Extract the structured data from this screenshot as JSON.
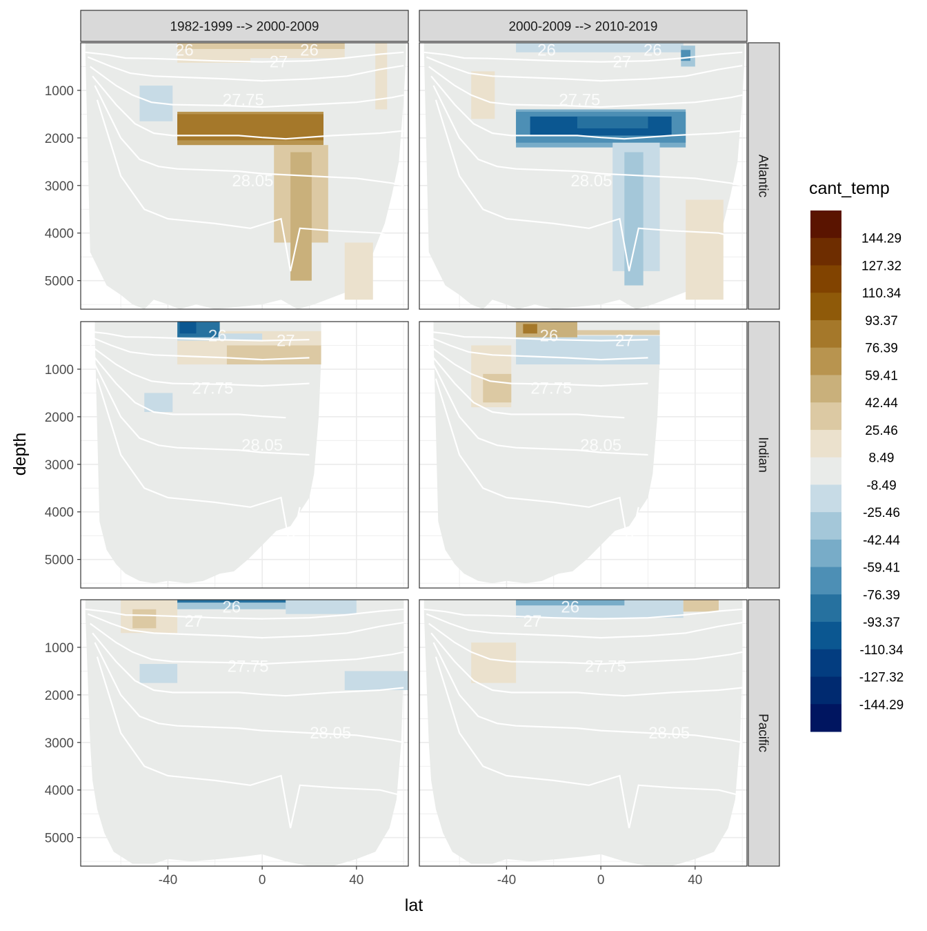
{
  "chart_data": {
    "type": "heatmap",
    "description_fields": {
      "xlabel": "lat",
      "ylabel": "depth",
      "legend_title": "cant_temp"
    },
    "x_ticks": [
      "-40",
      "0",
      "40"
    ],
    "x_tick_values": [
      -40,
      0,
      40
    ],
    "xlim": [
      -77,
      62
    ],
    "y_ticks": [
      "1000",
      "2000",
      "3000",
      "4000",
      "5000"
    ],
    "y_tick_values": [
      1000,
      2000,
      3000,
      4000,
      5000
    ],
    "ylim": [
      0,
      5600
    ],
    "columns": [
      "1982-1999 --> 2000-2009",
      "2000-2009 --> 2010-2019"
    ],
    "rows": [
      "Atlantic",
      "Indian",
      "Pacific"
    ],
    "legend_breaks": [
      "144.29",
      "127.32",
      "110.34",
      "93.37",
      "76.39",
      "59.41",
      "42.44",
      "25.46",
      "8.49",
      "-8.49",
      "-25.46",
      "-42.44",
      "-59.41",
      "-76.39",
      "-93.37",
      "-110.34",
      "-127.32",
      "-144.29"
    ],
    "legend_colors": [
      "#5a1400",
      "#6e2d00",
      "#814300",
      "#8f5a09",
      "#a5782a",
      "#b8944f",
      "#c9b07b",
      "#dcc9a3",
      "#ebe1cd",
      "#e9ebe9",
      "#c7dbe6",
      "#a4c7d9",
      "#78acc8",
      "#4d8fb5",
      "#26719f",
      "#0b5791",
      "#033d80",
      "#002a70",
      "#001560"
    ],
    "isopycnal_labels": [
      "26",
      "27",
      "27.75",
      "28.05"
    ],
    "panels": [
      {
        "row": "Atlantic",
        "col": 0,
        "labels": [
          {
            "t": "26",
            "x": -33,
            "z": 150
          },
          {
            "t": "26",
            "x": 20,
            "z": 150
          },
          {
            "t": "27",
            "x": 7,
            "z": 400
          },
          {
            "t": "27.75",
            "x": -8,
            "z": 1200
          },
          {
            "t": "28.05",
            "x": -4,
            "z": 2900
          }
        ]
      },
      {
        "row": "Atlantic",
        "col": 1,
        "labels": [
          {
            "t": "26",
            "x": -23,
            "z": 150
          },
          {
            "t": "26",
            "x": 22,
            "z": 150
          },
          {
            "t": "27",
            "x": 9,
            "z": 400
          },
          {
            "t": "27.75",
            "x": -9,
            "z": 1200
          },
          {
            "t": "28.05",
            "x": -4,
            "z": 2900
          }
        ]
      },
      {
        "row": "Indian",
        "col": 0,
        "labels": [
          {
            "t": "26",
            "x": -19,
            "z": 300
          },
          {
            "t": "27",
            "x": 10,
            "z": 400
          },
          {
            "t": "27.75",
            "x": -21,
            "z": 1400
          },
          {
            "t": "28.05",
            "x": 0,
            "z": 2600
          }
        ]
      },
      {
        "row": "Indian",
        "col": 1,
        "labels": [
          {
            "t": "26",
            "x": -22,
            "z": 300
          },
          {
            "t": "27",
            "x": 10,
            "z": 400
          },
          {
            "t": "27.75",
            "x": -21,
            "z": 1400
          },
          {
            "t": "28.05",
            "x": 0,
            "z": 2600
          }
        ]
      },
      {
        "row": "Pacific",
        "col": 0,
        "labels": [
          {
            "t": "26",
            "x": -13,
            "z": 150
          },
          {
            "t": "27",
            "x": -29,
            "z": 450
          },
          {
            "t": "27.75",
            "x": -6,
            "z": 1400
          },
          {
            "t": "28.05",
            "x": 29,
            "z": 2800
          }
        ]
      },
      {
        "row": "Pacific",
        "col": 1,
        "labels": [
          {
            "t": "26",
            "x": -13,
            "z": 150
          },
          {
            "t": "27",
            "x": -29,
            "z": 450
          },
          {
            "t": "27.75",
            "x": 2,
            "z": 1400
          },
          {
            "t": "28.05",
            "x": 29,
            "z": 2800
          }
        ]
      }
    ]
  }
}
